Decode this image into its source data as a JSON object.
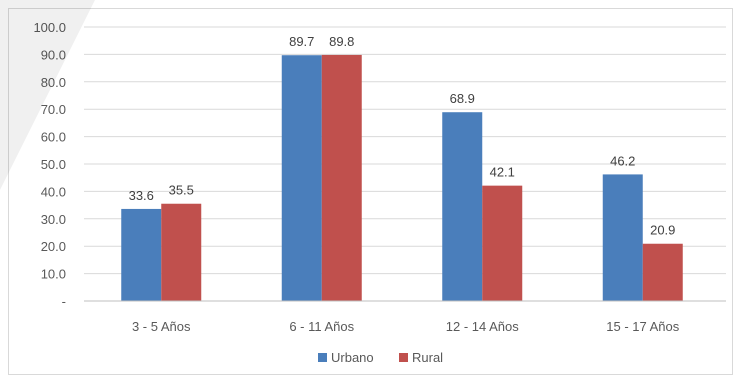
{
  "chart_data": {
    "type": "bar",
    "categories": [
      "3 - 5 Años",
      "6 - 11 Años",
      "12 - 14 Años",
      "15 - 17 Años"
    ],
    "series": [
      {
        "name": "Urbano",
        "values": [
          33.6,
          89.7,
          68.9,
          46.2
        ],
        "color": "#4a7ebb",
        "labels": [
          "33.6",
          "89.7",
          "68.9",
          "46.2"
        ]
      },
      {
        "name": "Rural",
        "values": [
          35.5,
          89.8,
          42.1,
          20.9
        ],
        "color": "#c0504d",
        "labels": [
          "35.5",
          "89.8",
          "42.1",
          "20.9"
        ]
      }
    ],
    "y_ticks": [
      {
        "value": 0,
        "label": "-"
      },
      {
        "value": 10,
        "label": "10.0"
      },
      {
        "value": 20,
        "label": "20.0"
      },
      {
        "value": 30,
        "label": "30.0"
      },
      {
        "value": 40,
        "label": "40.0"
      },
      {
        "value": 50,
        "label": "50.0"
      },
      {
        "value": 60,
        "label": "60.0"
      },
      {
        "value": 70,
        "label": "70.0"
      },
      {
        "value": 80,
        "label": "80.0"
      },
      {
        "value": 90,
        "label": "90.0"
      },
      {
        "value": 100,
        "label": "100.0"
      }
    ],
    "ylim": [
      0,
      100
    ],
    "grid": true,
    "legend_position": "bottom-center",
    "title": "",
    "xlabel": "",
    "ylabel": ""
  }
}
